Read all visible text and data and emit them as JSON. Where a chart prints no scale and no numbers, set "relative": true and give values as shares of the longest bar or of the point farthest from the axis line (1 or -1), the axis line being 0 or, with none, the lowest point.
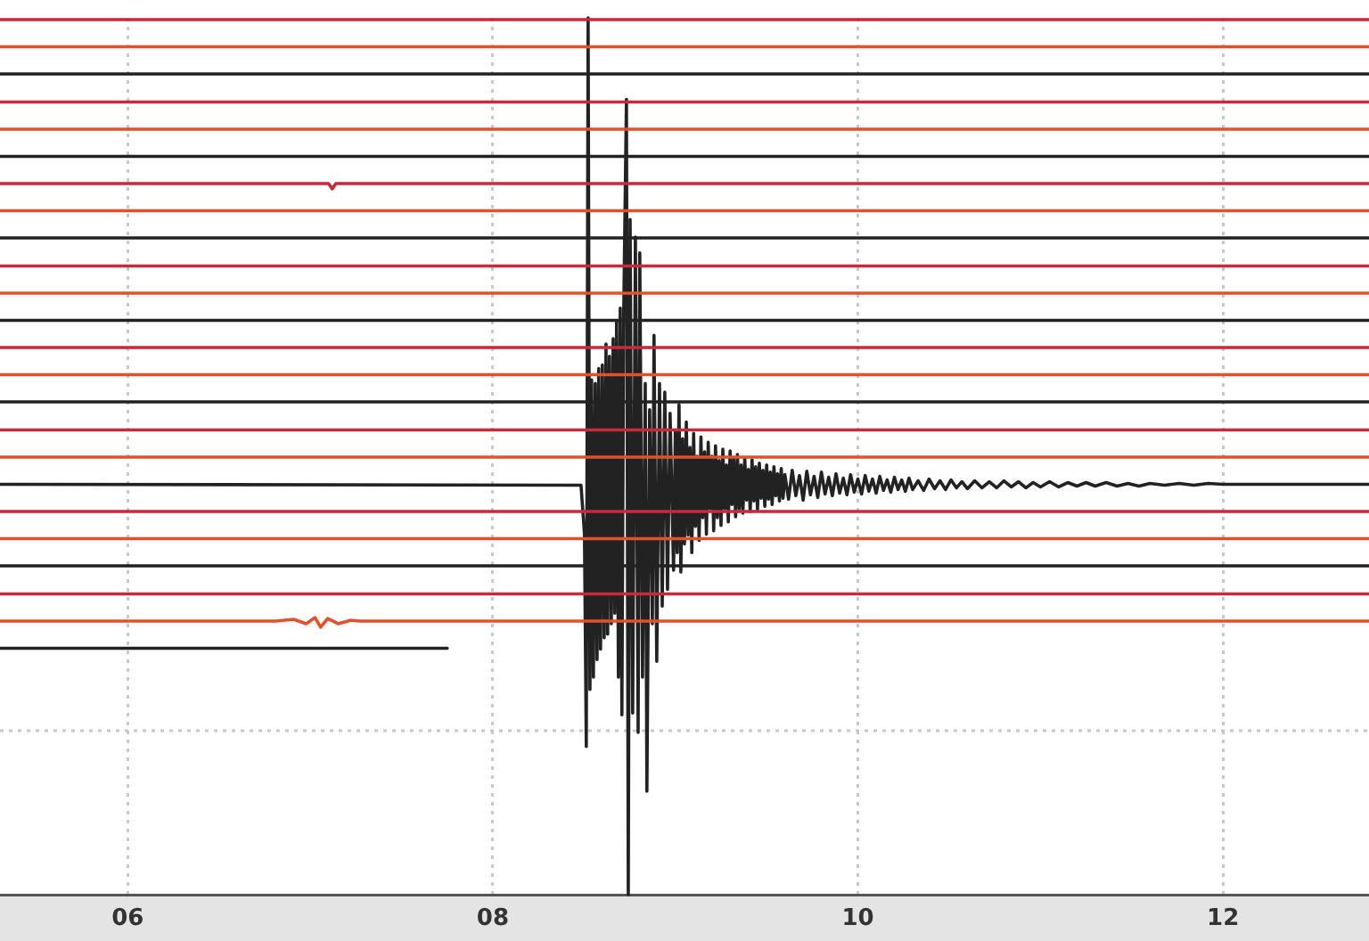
{
  "chart_data": {
    "type": "line",
    "relative": true,
    "xlim": [
      5.3,
      12.8
    ],
    "xticks": [
      {
        "value": 6,
        "label": "06"
      },
      {
        "value": 8,
        "label": "08"
      },
      10,
      12
    ],
    "grid": "x",
    "ref_lines": [
      {
        "axis": "y",
        "value": 0.187,
        "color": "#c8c8c8",
        "line_style": "dotted"
      }
    ],
    "series": [
      {
        "color": "#c42c3c",
        "x": [
          5.3,
          12.8
        ],
        "values": [
          0.998,
          0.998
        ]
      },
      {
        "color": "#e4502a",
        "x": [
          5.3,
          12.8
        ],
        "values": [
          0.967,
          0.967
        ]
      },
      {
        "color": "#222222",
        "x": [
          5.3,
          12.8
        ],
        "values": [
          0.936,
          0.936
        ]
      },
      {
        "color": "#c42c3c",
        "x": [
          5.3,
          12.8
        ],
        "values": [
          0.904,
          0.904
        ]
      },
      {
        "color": "#e4502a",
        "x": [
          5.3,
          12.8
        ],
        "values": [
          0.873,
          0.873
        ]
      },
      {
        "color": "#222222",
        "x": [
          5.3,
          12.8
        ],
        "values": [
          0.842,
          0.842
        ]
      },
      {
        "color": "#c42c3c",
        "x": [
          5.3,
          7.1,
          7.12,
          7.14,
          12.8
        ],
        "values": [
          0.811,
          0.811,
          0.805,
          0.811,
          0.811
        ]
      },
      {
        "color": "#e4502a",
        "x": [
          5.3,
          12.8
        ],
        "values": [
          0.78,
          0.78
        ]
      },
      {
        "color": "#222222",
        "x": [
          5.3,
          12.8
        ],
        "values": [
          0.749,
          0.749
        ]
      },
      {
        "color": "#c42c3c",
        "x": [
          5.3,
          12.8
        ],
        "values": [
          0.717,
          0.717
        ]
      },
      {
        "color": "#e4502a",
        "x": [
          5.3,
          12.8
        ],
        "values": [
          0.686,
          0.686
        ]
      },
      {
        "color": "#222222",
        "x": [
          5.3,
          12.8
        ],
        "values": [
          0.655,
          0.655
        ]
      },
      {
        "color": "#c42c3c",
        "x": [
          5.3,
          12.8
        ],
        "values": [
          0.624,
          0.624
        ]
      },
      {
        "color": "#e4502a",
        "x": [
          5.3,
          12.8
        ],
        "values": [
          0.593,
          0.593
        ]
      },
      {
        "color": "#222222",
        "x": [
          5.3,
          12.8
        ],
        "values": [
          0.562,
          0.562
        ]
      },
      {
        "color": "#c42c3c",
        "x": [
          5.3,
          12.8
        ],
        "values": [
          0.53,
          0.53
        ]
      },
      {
        "color": "#e4502a",
        "x": [
          5.3,
          12.8
        ],
        "values": [
          0.499,
          0.499
        ]
      },
      {
        "color": "#222222",
        "x": [
          5.3,
          8.483,
          8.502,
          8.512,
          8.522,
          8.532,
          8.541,
          8.551,
          8.561,
          8.571,
          8.58,
          8.59,
          8.6,
          8.61,
          8.62,
          8.629,
          8.639,
          8.649,
          8.659,
          8.668,
          8.678,
          8.688,
          8.698,
          8.707,
          8.717,
          8.732,
          8.742,
          8.752,
          8.766,
          8.781,
          8.796,
          8.805,
          8.82,
          8.835,
          8.844,
          8.859,
          8.874,
          8.883,
          8.898,
          8.913,
          8.928,
          8.942,
          8.957,
          8.971,
          8.99,
          9.0,
          9.01,
          9.02,
          9.03,
          9.04,
          9.05,
          9.06,
          9.07,
          9.08,
          9.09,
          9.1,
          9.11,
          9.12,
          9.13,
          9.14,
          9.15,
          9.16,
          9.17,
          9.18,
          9.19,
          9.2,
          9.21,
          9.22,
          9.23,
          9.24,
          9.25,
          9.26,
          9.27,
          9.28,
          9.29,
          9.3,
          9.31,
          9.32,
          9.33,
          9.34,
          9.35,
          9.36,
          9.37,
          9.38,
          9.39,
          9.4,
          9.41,
          9.42,
          9.43,
          9.44,
          9.45,
          9.46,
          9.47,
          9.48,
          9.49,
          9.5,
          9.51,
          9.52,
          9.53,
          9.54,
          9.55,
          9.56,
          9.57,
          9.58,
          9.59,
          9.6,
          9.62,
          9.64,
          9.66,
          9.68,
          9.7,
          9.72,
          9.74,
          9.76,
          9.78,
          9.8,
          9.82,
          9.84,
          9.86,
          9.88,
          9.9,
          9.92,
          9.94,
          9.96,
          9.98,
          10.0,
          10.02,
          10.04,
          10.06,
          10.08,
          10.1,
          10.12,
          10.14,
          10.16,
          10.18,
          10.2,
          10.22,
          10.24,
          10.26,
          10.28,
          10.3,
          10.33,
          10.36,
          10.39,
          10.42,
          10.45,
          10.48,
          10.51,
          10.54,
          10.57,
          10.6,
          10.64,
          10.68,
          10.72,
          10.76,
          10.8,
          10.84,
          10.88,
          10.92,
          10.96,
          11.0,
          11.05,
          11.1,
          11.15,
          11.2,
          11.25,
          11.3,
          11.36,
          11.42,
          11.48,
          11.54,
          11.6,
          11.68,
          11.76,
          11.84,
          11.92,
          12.0,
          12.8
        ],
        "values": [
          0.468,
          0.467,
          0.411,
          0.169,
          1,
          0.234,
          0.587,
          0.248,
          0.583,
          0.268,
          0.6,
          0.28,
          0.604,
          0.293,
          0.628,
          0.297,
          0.614,
          0.309,
          0.634,
          0.321,
          0.654,
          0.248,
          0.669,
          0.205,
          0.665,
          0.907,
          0,
          0.77,
          0.207,
          0.75,
          0.185,
          0.732,
          0.248,
          0.583,
          0.118,
          0.553,
          0.309,
          0.638,
          0.266,
          0.583,
          0.329,
          0.573,
          0.348,
          0.549,
          0.37,
          0.53,
          0.39,
          0.559,
          0.368,
          0.52,
          0.4,
          0.539,
          0.41,
          0.51,
          0.39,
          0.526,
          0.42,
          0.5,
          0.404,
          0.522,
          0.43,
          0.505,
          0.411,
          0.516,
          0.44,
          0.5,
          0.415,
          0.512,
          0.43,
          0.495,
          0.421,
          0.508,
          0.44,
          0.49,
          0.425,
          0.506,
          0.445,
          0.497,
          0.431,
          0.502,
          0.44,
          0.49,
          0.435,
          0.498,
          0.45,
          0.485,
          0.437,
          0.496,
          0.449,
          0.488,
          0.439,
          0.492,
          0.452,
          0.484,
          0.443,
          0.49,
          0.451,
          0.482,
          0.445,
          0.488,
          0.455,
          0.48,
          0.449,
          0.486,
          0.452,
          0.479,
          0.451,
          0.484,
          0.455,
          0.478,
          0.45,
          0.483,
          0.456,
          0.477,
          0.453,
          0.482,
          0.457,
          0.476,
          0.455,
          0.48,
          0.458,
          0.475,
          0.456,
          0.479,
          0.459,
          0.474,
          0.457,
          0.478,
          0.46,
          0.474,
          0.458,
          0.477,
          0.461,
          0.473,
          0.459,
          0.476,
          0.462,
          0.473,
          0.46,
          0.475,
          0.462,
          0.472,
          0.461,
          0.474,
          0.463,
          0.472,
          0.462,
          0.473,
          0.464,
          0.471,
          0.463,
          0.472,
          0.464,
          0.471,
          0.464,
          0.472,
          0.465,
          0.471,
          0.464,
          0.47,
          0.465,
          0.471,
          0.465,
          0.47,
          0.466,
          0.47,
          0.466,
          0.47,
          0.466,
          0.469,
          0.466,
          0.469,
          0.467,
          0.469,
          0.467,
          0.469,
          0.468,
          0.468
        ]
      },
      {
        "color": "#c42c3c",
        "x": [
          5.3,
          12.8
        ],
        "values": [
          0.437,
          0.437
        ]
      },
      {
        "color": "#e4502a",
        "x": [
          5.3,
          12.8
        ],
        "values": [
          0.406,
          0.406
        ]
      },
      {
        "color": "#222222",
        "x": [
          5.3,
          12.8
        ],
        "values": [
          0.375,
          0.375
        ]
      },
      {
        "color": "#c42c3c",
        "x": [
          5.3,
          12.8
        ],
        "values": [
          0.343,
          0.343
        ]
      },
      {
        "color": "#e4502a",
        "x": [
          5.3,
          6.811,
          6.909,
          6.977,
          7.026,
          7.056,
          7.095,
          7.153,
          7.222,
          7.271,
          12.8
        ],
        "values": [
          0.312,
          0.312,
          0.314,
          0.309,
          0.316,
          0.305,
          0.315,
          0.309,
          0.313,
          0.312,
          0.312
        ]
      },
      {
        "color": "#222222",
        "x": [
          5.3,
          7.75
        ],
        "values": [
          0.281,
          0.281
        ]
      }
    ]
  }
}
